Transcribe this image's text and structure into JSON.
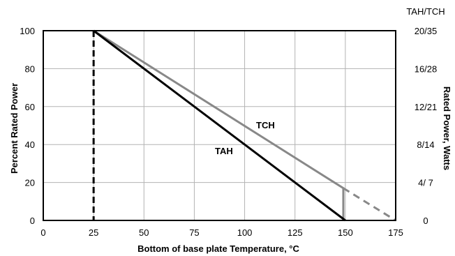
{
  "chart_data": {
    "type": "line",
    "title": "",
    "xlabel": "Bottom of base plate Temperature, °C",
    "ylabel": "Percent Rated Power",
    "y2label": "Rated Power, Watts",
    "y2_header": "TAH/TCH",
    "xlim": [
      0,
      175
    ],
    "ylim": [
      0,
      100
    ],
    "x_ticks": [
      "0",
      "25",
      "50",
      "75",
      "100",
      "125",
      "150",
      "175"
    ],
    "y_ticks": [
      "0",
      "20",
      "40",
      "60",
      "80",
      "100"
    ],
    "y2_ticks": [
      "0",
      "4/ 7",
      "8/14",
      "12/21",
      "16/28",
      "20/35"
    ],
    "grid": true,
    "legend": "none",
    "series": [
      {
        "name": "TAH",
        "color": "#000000",
        "points": [
          [
            25,
            100
          ],
          [
            150,
            0
          ]
        ]
      },
      {
        "name": "TCH",
        "color": "#888888",
        "points": [
          [
            25,
            100
          ],
          [
            149,
            17
          ],
          [
            149,
            0
          ]
        ],
        "extension_dashed": [
          [
            149,
            17
          ],
          [
            175,
            0
          ]
        ]
      }
    ],
    "reference_line": {
      "x": 25,
      "style": "dashed",
      "color": "#000000"
    }
  }
}
